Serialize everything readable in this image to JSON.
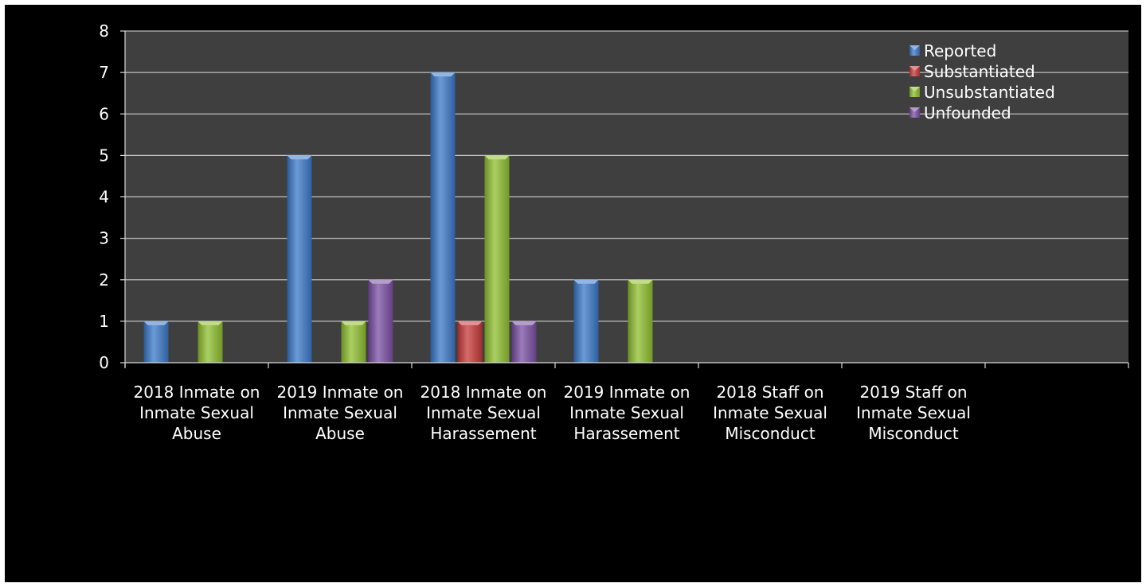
{
  "chart_data": {
    "type": "bar",
    "categories": [
      [
        "2018 Inmate on",
        "Inmate Sexual",
        "Abuse"
      ],
      [
        "2019 Inmate on",
        "Inmate Sexual",
        "Abuse"
      ],
      [
        "2018 Inmate on",
        "Inmate Sexual",
        "Harassement"
      ],
      [
        "2019 Inmate on",
        "Inmate Sexual",
        "Harassement"
      ],
      [
        "2018 Staff on",
        "Inmate Sexual",
        "Misconduct"
      ],
      [
        "2019 Staff on",
        "Inmate Sexual",
        "Misconduct"
      ],
      [
        "",
        "",
        ""
      ]
    ],
    "series": [
      {
        "name": "Reported",
        "color": "#3b78c8",
        "values": [
          1,
          5,
          7,
          2,
          0,
          0,
          0
        ]
      },
      {
        "name": "Substantiated",
        "color": "#c83a3a",
        "values": [
          0,
          0,
          1,
          0,
          0,
          0,
          0
        ]
      },
      {
        "name": "Unsubstantiated",
        "color": "#8fbf2f",
        "values": [
          1,
          1,
          5,
          2,
          0,
          0,
          0
        ]
      },
      {
        "name": "Unfounded",
        "color": "#7a4fa3",
        "values": [
          0,
          2,
          1,
          0,
          0,
          0,
          0
        ]
      }
    ],
    "ylim": [
      0,
      8
    ],
    "yticks": [
      0,
      1,
      2,
      3,
      4,
      5,
      6,
      7,
      8
    ],
    "grid": true,
    "legend_position": "top-right",
    "plot_background": "#3f3f3f",
    "outer_background": "#000000"
  }
}
